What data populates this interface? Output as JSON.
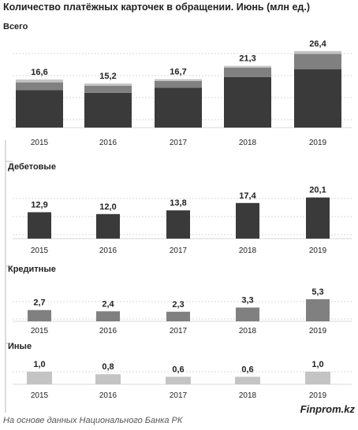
{
  "title": "Количество платёжных карточек в обращении. Июнь (млн ед.)",
  "source": "На основе данных Национального  Банка РК",
  "brand": "Finprom.kz",
  "chart_data": [
    {
      "type": "bar",
      "name": "Всего",
      "categories": [
        "2015",
        "2016",
        "2017",
        "2018",
        "2019"
      ],
      "values": [
        16.6,
        15.2,
        16.7,
        21.3,
        26.4
      ],
      "labels": [
        "16,6",
        "15,2",
        "16,7",
        "21,3",
        "26,4"
      ],
      "stacked_components": {
        "Дебетовые": [
          12.9,
          12.0,
          13.8,
          17.4,
          20.1
        ],
        "Кредитные": [
          2.7,
          2.4,
          2.3,
          3.3,
          5.3
        ],
        "Иные": [
          1.0,
          0.8,
          0.6,
          0.6,
          1.0
        ]
      },
      "grid": true
    },
    {
      "type": "bar",
      "name": "Дебетовые",
      "categories": [
        "2015",
        "2016",
        "2017",
        "2018",
        "2019"
      ],
      "values": [
        12.9,
        12.0,
        13.8,
        17.4,
        20.1
      ],
      "labels": [
        "12,9",
        "12,0",
        "13,8",
        "17,4",
        "20,1"
      ],
      "color": "#3a3a3a",
      "grid": true
    },
    {
      "type": "bar",
      "name": "Кредитные",
      "categories": [
        "2015",
        "2016",
        "2017",
        "2018",
        "2019"
      ],
      "values": [
        2.7,
        2.4,
        2.3,
        3.3,
        5.3
      ],
      "labels": [
        "2,7",
        "2,4",
        "2,3",
        "3,3",
        "5,3"
      ],
      "color": "#808080",
      "grid": true
    },
    {
      "type": "bar",
      "name": "Иные",
      "categories": [
        "2015",
        "2016",
        "2017",
        "2018",
        "2019"
      ],
      "values": [
        1.0,
        0.8,
        0.6,
        0.6,
        1.0
      ],
      "labels": [
        "1,0",
        "0,8",
        "0,6",
        "0,6",
        "1,0"
      ],
      "color": "#c4c4c4",
      "grid": true
    }
  ],
  "colors": {
    "debit": "#3a3a3a",
    "credit": "#808080",
    "other": "#c4c4c4",
    "grid": "#d9d9d9",
    "text": "#222222"
  }
}
